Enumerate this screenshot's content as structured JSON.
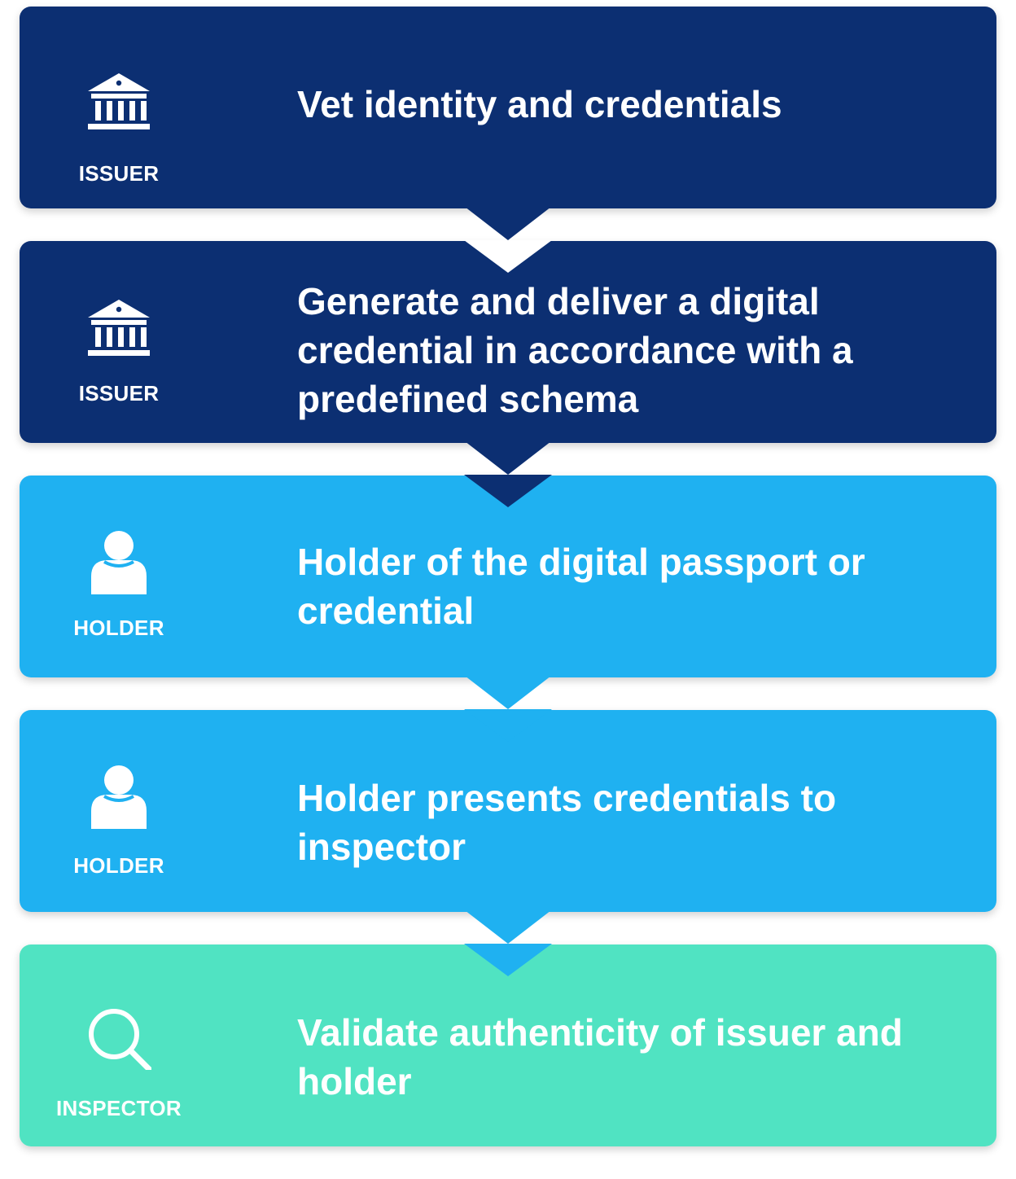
{
  "colors": {
    "issuer": "#0c2f72",
    "holder": "#1fb1f1",
    "inspector": "#50e3c2",
    "text": "#ffffff"
  },
  "steps": [
    {
      "role": "ISSUER",
      "icon": "bank-icon",
      "text": "Vet identity and credentials"
    },
    {
      "role": "ISSUER",
      "icon": "bank-icon",
      "text": "Generate and deliver a digital credential in accordance with a predefined schema"
    },
    {
      "role": "HOLDER",
      "icon": "person-icon",
      "text": "Holder of the digital passport or credential"
    },
    {
      "role": "HOLDER",
      "icon": "person-icon",
      "text": "Holder presents credentials to inspector"
    },
    {
      "role": "INSPECTOR",
      "icon": "magnifier-icon",
      "text": "Validate authenticity of issuer and holder"
    }
  ]
}
